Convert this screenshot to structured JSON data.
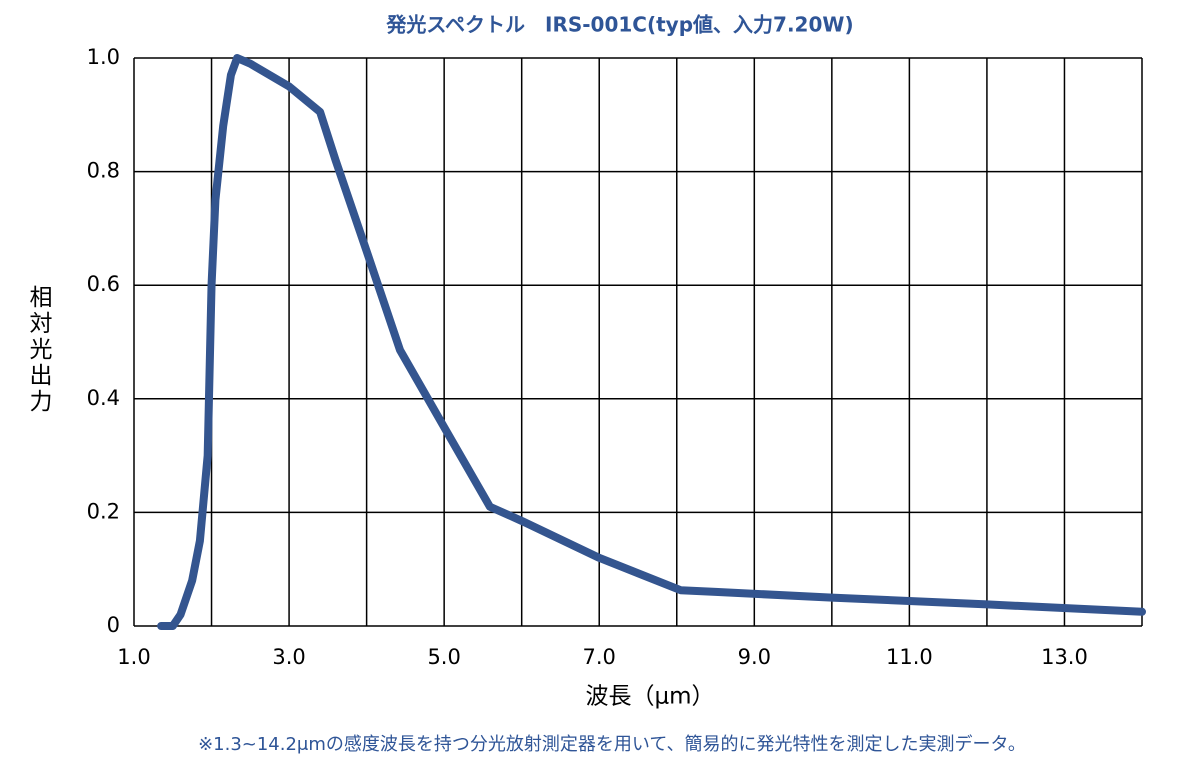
{
  "chart_data": {
    "type": "line",
    "title": "発光スペクトル　IRS-001C(typ値、入力7.20W)",
    "x_label": "波長（μm）",
    "y_label": "相対光出力",
    "footnote": "※1.3~14.2μmの感度波長を持つ分光放射測定器を用いて、簡易的に発光特性を測定した実測データ。",
    "x": [
      1.35,
      1.5,
      1.6,
      1.75,
      1.85,
      1.95,
      2.0,
      2.05,
      2.15,
      2.25,
      2.33,
      2.5,
      3.0,
      3.4,
      3.6,
      4.0,
      4.43,
      5.0,
      5.59,
      6.0,
      7.0,
      8.05,
      8.5,
      10.0,
      12.0,
      14.0
    ],
    "series": [
      {
        "color": "#34558f",
        "values": [
          0.0,
          0.0,
          0.02,
          0.08,
          0.15,
          0.3,
          0.6,
          0.75,
          0.88,
          0.97,
          1.0,
          0.99,
          0.95,
          0.905,
          0.82,
          0.66,
          0.486,
          0.35,
          0.21,
          0.185,
          0.12,
          0.063,
          0.06,
          0.05,
          0.038,
          0.025
        ]
      }
    ],
    "xlim": [
      1.0,
      14.0
    ],
    "xticks": [
      {
        "value": 1,
        "label": "1.0"
      },
      {
        "value": 2,
        "label": null
      },
      {
        "value": 3,
        "label": "3.0"
      },
      {
        "value": 4,
        "label": null
      },
      {
        "value": 5,
        "label": "5.0"
      },
      {
        "value": 6,
        "label": null
      },
      {
        "value": 7,
        "label": "7.0"
      },
      {
        "value": 8,
        "label": null
      },
      {
        "value": 9,
        "label": "9.0"
      },
      {
        "value": 10,
        "label": null
      },
      {
        "value": 11,
        "label": "11.0"
      },
      {
        "value": 12,
        "label": null
      },
      {
        "value": 13,
        "label": "13.0"
      },
      {
        "value": 14,
        "label": null
      }
    ],
    "ylim": [
      0,
      1.0
    ],
    "yticks": [
      0,
      0.2,
      0.4,
      0.6,
      0.8,
      {
        "value": 1,
        "label": "1.0"
      }
    ],
    "grid": true
  }
}
